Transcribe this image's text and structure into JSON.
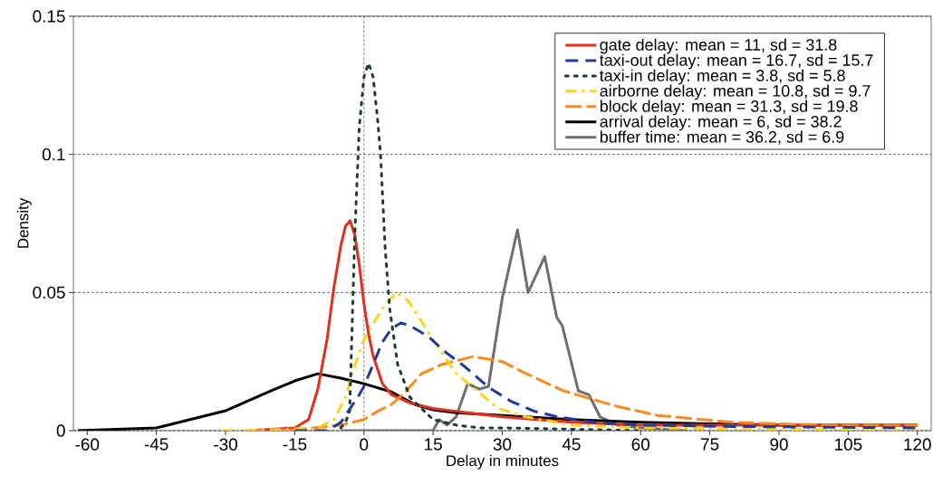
{
  "chart_data": {
    "type": "line",
    "xlabel": "Delay in minutes",
    "ylabel": "Density",
    "xlim": [
      -63,
      123
    ],
    "ylim": [
      0,
      0.15
    ],
    "xticks": [
      -60,
      -45,
      -30,
      -15,
      0,
      15,
      30,
      45,
      60,
      75,
      90,
      105,
      120
    ],
    "yticks": [
      0,
      0.05,
      0.1,
      0.15
    ],
    "grid": "y",
    "legend": "top right",
    "ref_lines": [
      {
        "axis": "x",
        "value": 0,
        "color": "#555555",
        "line_style": "dashed"
      }
    ],
    "series": [
      {
        "name": "gate delay: mean = 11, sd = 31.8",
        "color": "#e0301e",
        "line_style": "solid",
        "x": [
          -25,
          -20,
          -15,
          -12,
          -10,
          -8,
          -6.5,
          -5,
          -4,
          -3,
          -2,
          -1,
          0,
          1,
          2,
          4,
          6,
          10,
          15,
          20,
          30,
          45,
          60,
          90,
          120
        ],
        "values": [
          0,
          0.0005,
          0.001,
          0.004,
          0.015,
          0.033,
          0.052,
          0.067,
          0.074,
          0.076,
          0.071,
          0.06,
          0.046,
          0.035,
          0.027,
          0.017,
          0.013,
          0.01,
          0.008,
          0.007,
          0.005,
          0.003,
          0.002,
          0.002,
          0.002
        ]
      },
      {
        "name": "taxi-out delay: mean = 16.7, sd = 15.7",
        "color": "#1f3a9a",
        "line_style": "dashed",
        "x": [
          -15,
          -8,
          -5,
          -3,
          -1,
          0,
          2,
          4,
          6,
          8,
          10,
          14,
          18,
          22,
          27,
          32,
          37,
          42,
          50,
          60,
          80,
          120
        ],
        "values": [
          0,
          0,
          0.003,
          0.008,
          0.013,
          0.016,
          0.024,
          0.032,
          0.037,
          0.039,
          0.038,
          0.034,
          0.028,
          0.023,
          0.0157,
          0.0105,
          0.007,
          0.005,
          0.003,
          0.002,
          0.0015,
          0.001
        ]
      },
      {
        "name": "taxi-in delay: mean = 3.8, sd = 5.8",
        "color": "#1f3d2b",
        "line_style": "dotted",
        "x": [
          -5,
          -4,
          -3.1,
          -2.6,
          -2,
          -1,
          0,
          1,
          2,
          3,
          3.6,
          4.6,
          5.6,
          7.3,
          10,
          15,
          20,
          25,
          30,
          45,
          60
        ],
        "values": [
          0.001,
          0.003,
          0.007,
          0.035,
          0.07,
          0.11,
          0.128,
          0.133,
          0.128,
          0.112,
          0.1,
          0.066,
          0.044,
          0.024,
          0.012,
          0.004,
          0.002,
          0.001,
          0.001,
          0.0005,
          0
        ]
      },
      {
        "name": "airborne delay: mean = 10.8, sd = 9.7",
        "color": "#ffd21a",
        "line_style": "dashdot",
        "x": [
          -31,
          -20,
          -10,
          -6.5,
          -4,
          -2.3,
          0,
          3.9,
          7,
          9.6,
          15,
          19.8,
          24.5,
          29.2,
          35,
          45,
          60,
          120
        ],
        "values": [
          0,
          0.0003,
          0.001,
          0.004,
          0.012,
          0.022,
          0.033,
          0.044,
          0.05,
          0.047,
          0.033,
          0.021,
          0.0144,
          0.008,
          0.005,
          0.002,
          0.001,
          0
        ]
      },
      {
        "name": "block delay: mean = 31.3, sd = 19.8",
        "color": "#ff8a1c",
        "line_style": "long dashed",
        "x": [
          -25,
          -15,
          -5,
          0,
          3,
          6,
          9,
          12.5,
          17,
          23.7,
          30,
          34.7,
          43.3,
          54.3,
          63.7,
          80,
          100,
          120
        ],
        "values": [
          0,
          0.0003,
          0.002,
          0.004,
          0.007,
          0.0095,
          0.014,
          0.0206,
          0.024,
          0.0268,
          0.025,
          0.021,
          0.0144,
          0.009,
          0.0055,
          0.003,
          0.002,
          0.002
        ]
      },
      {
        "name": "arrival delay: mean = 6, sd = 38.2",
        "color": "#000000",
        "line_style": "solid",
        "x": [
          -62,
          -45,
          -30,
          -20,
          -15,
          -10,
          -5,
          0,
          6,
          11,
          15,
          20,
          30,
          45,
          60,
          90,
          120
        ],
        "values": [
          0,
          0.001,
          0.0072,
          0.0145,
          0.018,
          0.0206,
          0.019,
          0.017,
          0.014,
          0.0095,
          0.0075,
          0.0065,
          0.0055,
          0.004,
          0.003,
          0.002,
          0.002
        ]
      },
      {
        "name": "buffer time: mean = 36.2, sd = 6.9",
        "color": "#6e6e6e",
        "line_style": "solid",
        "x": [
          -5,
          15,
          16.3,
          18,
          20,
          22.5,
          25,
          27,
          30,
          33.3,
          35.6,
          39.2,
          41.8,
          43,
          46.5,
          48.8,
          51.2,
          55,
          60,
          70
        ],
        "values": [
          0,
          0,
          0.004,
          0.002,
          0.005,
          0.017,
          0.015,
          0.016,
          0.048,
          0.0727,
          0.05,
          0.063,
          0.041,
          0.038,
          0.0144,
          0.013,
          0.005,
          0.002,
          0.001,
          0
        ]
      }
    ]
  }
}
